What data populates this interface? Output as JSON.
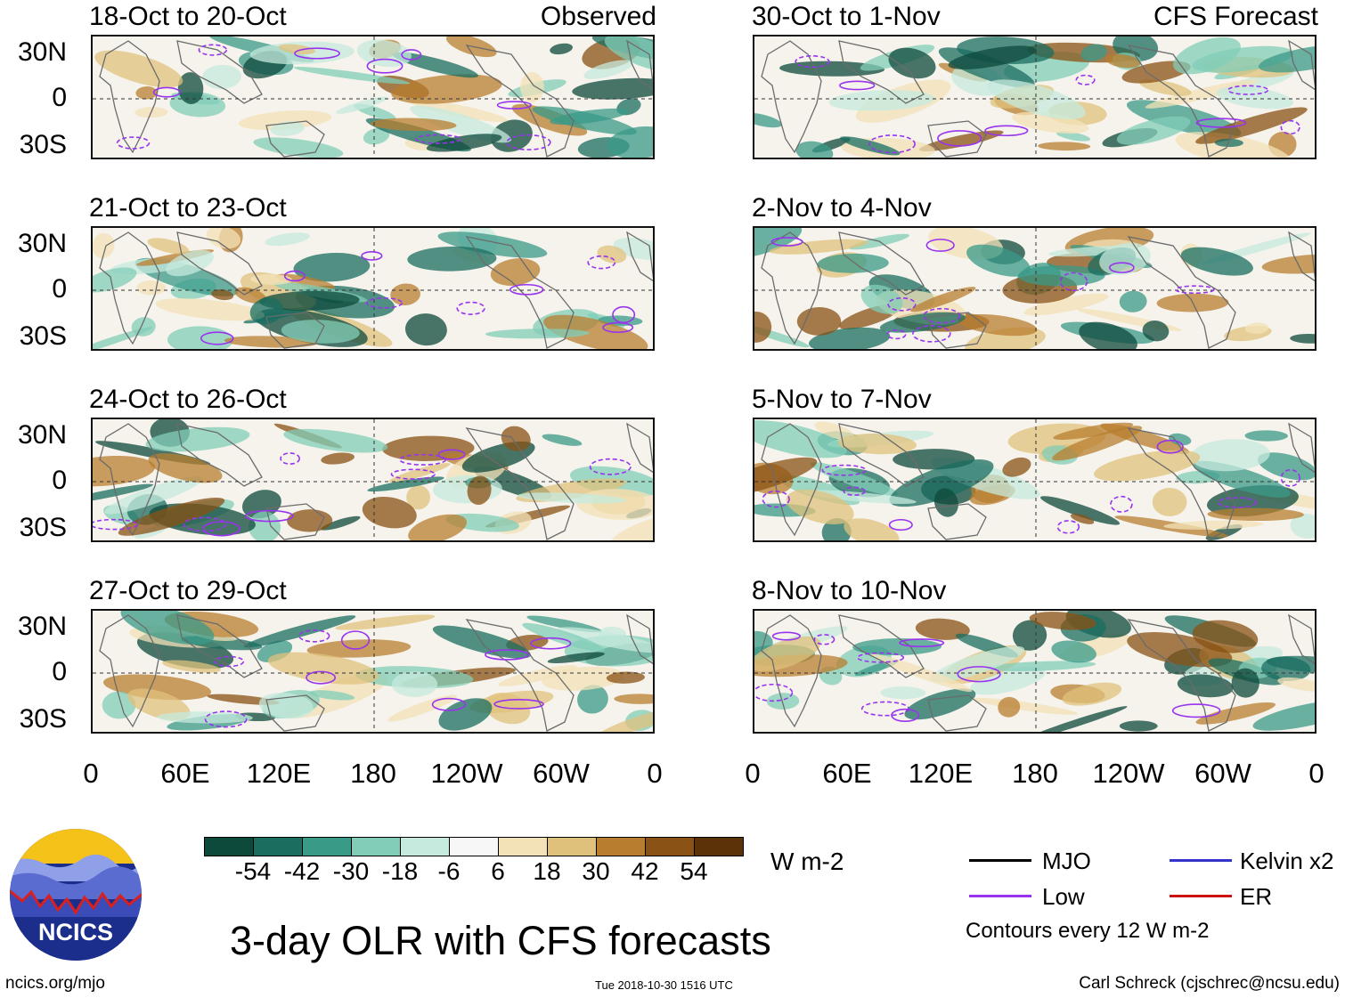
{
  "title": "3-day OLR with CFS forecasts",
  "footer": {
    "url": "ncics.org/mjo",
    "timestamp": "Tue 2018-10-30 1516 UTC",
    "credit": "Carl Schreck (cjschrec@ncsu.edu)"
  },
  "logo": {
    "text": "NCICS"
  },
  "panels_left": [
    {
      "period": "18-Oct to 20-Oct",
      "tag": "Observed"
    },
    {
      "period": "21-Oct to 23-Oct",
      "tag": ""
    },
    {
      "period": "24-Oct to 26-Oct",
      "tag": ""
    },
    {
      "period": "27-Oct to 29-Oct",
      "tag": ""
    }
  ],
  "panels_right": [
    {
      "period": "30-Oct to 1-Nov",
      "tag": "CFS Forecast"
    },
    {
      "period": "2-Nov to 4-Nov",
      "tag": ""
    },
    {
      "period": "5-Nov to 7-Nov",
      "tag": ""
    },
    {
      "period": "8-Nov to 10-Nov",
      "tag": ""
    }
  ],
  "lat_labels": [
    "30N",
    "0",
    "30S"
  ],
  "lon_labels": [
    "0",
    "60E",
    "120E",
    "180",
    "120W",
    "60W",
    "0"
  ],
  "colorbar": {
    "unit": "W m-2",
    "ticks": [
      "-54",
      "-42",
      "-30",
      "-18",
      "-6",
      "6",
      "18",
      "30",
      "42",
      "54"
    ],
    "colors": [
      "#0d4a3c",
      "#1a6e60",
      "#3a9a88",
      "#82cdb8",
      "#c6eadd",
      "#f7f7f7",
      "#f3e2b8",
      "#e0c17c",
      "#b87d2f",
      "#8a5214",
      "#5c3308"
    ]
  },
  "legend": {
    "items": [
      {
        "label": "MJO",
        "color": "#000000"
      },
      {
        "label": "Kelvin x2",
        "color": "#3333cc"
      },
      {
        "label": "Low",
        "color": "#9933ee"
      },
      {
        "label": "ER",
        "color": "#cc1111"
      }
    ],
    "note": "Contours every 12 W m-2"
  }
}
